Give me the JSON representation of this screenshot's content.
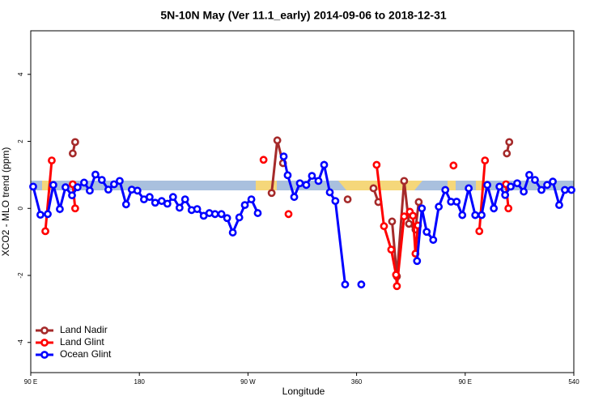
{
  "chart_data": {
    "type": "line",
    "title": "5N-10N May (Ver 11.1_early)   2014-09-06 to 2018-12-31",
    "x_label": "Longitude",
    "y_label": "XCO2 - MLO trend (ppm)",
    "xlim": [
      90,
      540
    ],
    "ylim": [
      -4.9,
      5.3
    ],
    "xticks": [
      {
        "value": 90,
        "label": "90 E"
      },
      180,
      {
        "value": 270,
        "label": "90 W"
      },
      360,
      {
        "value": 450,
        "label": "90 E"
      },
      540
    ],
    "yticks": [
      -4,
      -2,
      0,
      2,
      4
    ],
    "legend": "lower left",
    "series": [
      {
        "name": "Land Nadir",
        "color": "#a52a2a",
        "x": [
          124.8,
          126.8,
          null,
          289.6,
          294.3,
          299.0,
          null,
          352.6,
          null,
          374.0,
          378.0,
          null,
          389.4,
          393.4,
          399.4,
          403.4,
          408.8,
          411.5,
          null,
          484.5,
          486.5
        ],
        "values": [
          1.64,
          1.98,
          null,
          0.46,
          2.03,
          1.35,
          null,
          0.27,
          null,
          0.6,
          0.19,
          null,
          -0.39,
          -2.03,
          0.82,
          -0.46,
          -0.63,
          0.19,
          null,
          1.64,
          1.98
        ]
      },
      {
        "name": "Land Glint",
        "color": "#ff0000",
        "x": [
          102.1,
          107.4,
          null,
          124.8,
          126.8,
          null,
          282.9,
          null,
          303.6,
          null,
          376.6,
          382.7,
          388.7,
          392.7,
          393.4,
          399.4,
          404.1,
          406.7,
          408.8,
          410.8,
          null,
          440.3,
          null,
          461.7,
          466.4,
          null,
          483.8,
          485.8
        ],
        "values": [
          -0.68,
          1.43,
          null,
          0.72,
          0,
          null,
          1.45,
          null,
          -0.17,
          null,
          1.3,
          -0.53,
          -1.23,
          -1.98,
          -2.32,
          -0.24,
          -0.1,
          -0.22,
          -1.35,
          -0.51,
          null,
          1.28,
          null,
          -0.68,
          1.43,
          null,
          0.72,
          0
        ]
      },
      {
        "name": "Ocean Glint",
        "color": "#0000ff",
        "x": [
          92.0,
          98.0,
          104.1,
          108.7,
          114.1,
          118.8,
          124.2,
          128.8,
          134.2,
          138.9,
          143.6,
          148.9,
          154.3,
          159.0,
          163.7,
          169.0,
          173.7,
          178.4,
          183.8,
          188.5,
          193.1,
          198.5,
          203.2,
          207.9,
          213.3,
          217.9,
          223.3,
          227.9,
          233.3,
          238.0,
          242.7,
          248.0,
          252.7,
          257.4,
          262.8,
          267.4,
          272.8,
          278.1,
          null,
          299.6,
          302.9,
          308.3,
          313.0,
          318.3,
          323.0,
          328.4,
          333.1,
          337.8,
          342.4,
          350.5,
          null,
          363.9,
          null,
          410.1,
          414.1,
          418.1,
          423.5,
          428.1,
          433.5,
          438.2,
          442.9,
          447.6,
          452.9,
          458.3,
          463.6,
          468.3,
          473.7,
          478.4,
          483.1,
          487.7,
          493.1,
          498.5,
          503.1,
          507.8,
          513.2,
          517.9,
          522.6,
          527.9,
          532.6,
          538.0
        ],
        "values": [
          0.65,
          -0.19,
          -0.17,
          0.7,
          -0.02,
          0.63,
          0.39,
          0.63,
          0.77,
          0.53,
          1.01,
          0.85,
          0.56,
          0.72,
          0.82,
          0.12,
          0.56,
          0.53,
          0.27,
          0.34,
          0.17,
          0.22,
          0.14,
          0.34,
          0.02,
          0.27,
          -0.05,
          -0.02,
          -0.22,
          -0.14,
          -0.17,
          -0.17,
          -0.29,
          -0.72,
          -0.27,
          0.1,
          0.27,
          -0.14,
          null,
          1.55,
          0.99,
          0.34,
          0.75,
          0.7,
          0.97,
          0.82,
          1.3,
          0.48,
          0.22,
          -2.27,
          null,
          -2.27,
          null,
          -1.57,
          0,
          -0.7,
          -0.94,
          0.05,
          0.55,
          0.2,
          0.2,
          -0.2,
          0.6,
          -0.2,
          -0.2,
          0.7,
          0,
          0.65,
          0.4,
          0.65,
          0.75,
          0.5,
          1.0,
          0.85,
          0.55,
          0.7,
          0.8,
          0.1,
          0.55,
          0.55
        ]
      }
    ]
  }
}
